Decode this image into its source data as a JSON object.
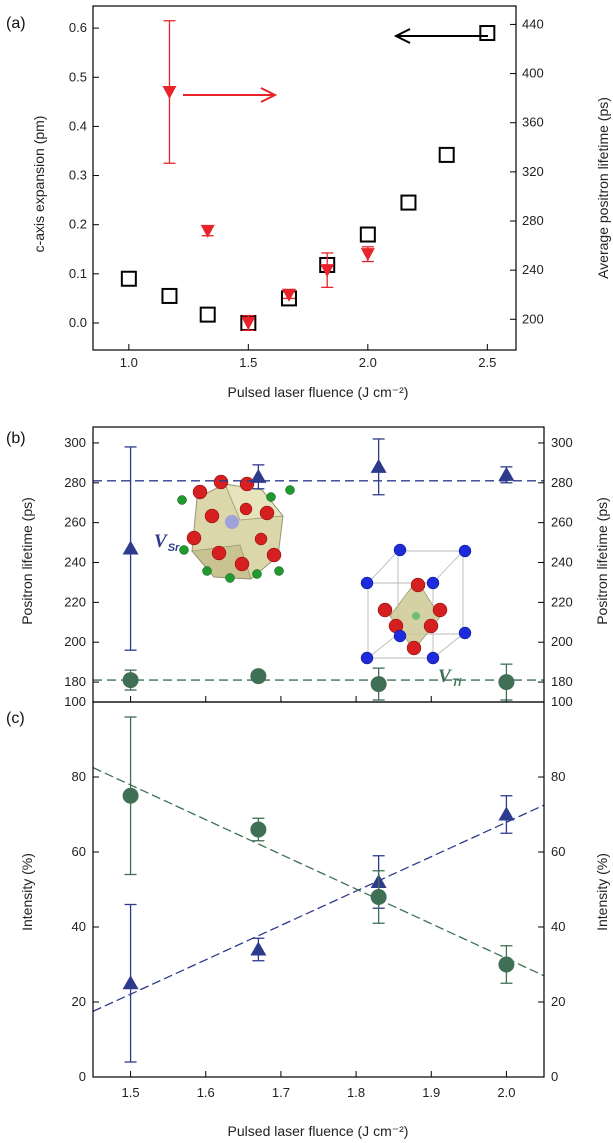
{
  "chart_data": [
    {
      "type": "scatter",
      "panel_label": "(a)",
      "xlabel": "Pulsed laser fluence (J cm⁻²)",
      "ylabel_left": "c-axis expansion (pm)",
      "ylabel_right": "Average positron lifetime (ps)",
      "xlim": [
        0.85,
        2.62
      ],
      "ylim_left": [
        -0.055,
        0.645
      ],
      "ylim_right": [
        175,
        455
      ],
      "xticks": [
        "1.0",
        "1.5",
        "2.0",
        "2.5"
      ],
      "yticks_left": [
        "0.0",
        "0.1",
        "0.2",
        "0.3",
        "0.4",
        "0.5",
        "0.6"
      ],
      "yticks_right": [
        "200",
        "240",
        "280",
        "320",
        "360",
        "400",
        "440"
      ],
      "series": [
        {
          "axis": "left",
          "color": "#000000",
          "marker": "open-square",
          "x": [
            1.0,
            1.17,
            1.33,
            1.5,
            1.67,
            1.83,
            2.0,
            2.17,
            2.33,
            2.5
          ],
          "y": [
            0.09,
            0.055,
            0.017,
            0.0,
            0.05,
            0.118,
            0.18,
            0.245,
            0.342,
            0.59
          ]
        },
        {
          "axis": "right",
          "color": "#e8242a",
          "marker": "filled-triangle-down",
          "x": [
            1.17,
            1.33,
            1.5,
            1.67,
            1.83,
            2.0
          ],
          "y": [
            385,
            272,
            197,
            220,
            240,
            253
          ],
          "err": [
            58,
            4,
            6,
            3,
            14,
            6
          ]
        }
      ]
    },
    {
      "type": "scatter",
      "panel_label": "(b)",
      "ylabel_left": "Positron lifetime (ps)",
      "ylabel_right": "Positron lifetime (ps)",
      "xlim": [
        1.45,
        2.05
      ],
      "ylim": [
        170,
        308
      ],
      "yticks": [
        "180",
        "200",
        "220",
        "240",
        "260",
        "280",
        "300"
      ],
      "labels": {
        "vsr": "V",
        "vsr_sub": "Sr",
        "vti": "V",
        "vti_sub": "Ti"
      },
      "reference_lines": [
        {
          "y": 281,
          "color": "#2e3b8c"
        },
        {
          "y": 181,
          "color": "#3f7055"
        }
      ],
      "series": [
        {
          "color": "#2e3b8c",
          "marker": "filled-triangle-up",
          "x": [
            1.5,
            1.67,
            1.83,
            2.0
          ],
          "y": [
            247,
            283,
            288,
            284
          ],
          "err": [
            51,
            6,
            14,
            4
          ]
        },
        {
          "color": "#3f7055",
          "marker": "filled-circle",
          "x": [
            1.5,
            1.67,
            1.83,
            2.0
          ],
          "y": [
            181,
            183,
            179,
            180
          ],
          "err": [
            5,
            0,
            8,
            9
          ]
        }
      ]
    },
    {
      "type": "scatter",
      "panel_label": "(c)",
      "xlabel": "Pulsed laser fluence (J cm⁻²)",
      "ylabel_left": "Intensity (%)",
      "ylabel_right": "Intensity (%)",
      "xlim": [
        1.45,
        2.05
      ],
      "ylim": [
        0,
        100
      ],
      "xticks": [
        "1.5",
        "1.6",
        "1.7",
        "1.8",
        "1.9",
        "2.0"
      ],
      "yticks": [
        "0",
        "20",
        "40",
        "60",
        "80",
        "100"
      ],
      "trend_lines": [
        {
          "color": "#2e3b8c",
          "x": [
            1.45,
            2.05
          ],
          "y": [
            17.5,
            72.5
          ]
        },
        {
          "color": "#3f7055",
          "x": [
            1.45,
            2.05
          ],
          "y": [
            82.5,
            27
          ]
        }
      ],
      "series": [
        {
          "color": "#2e3b8c",
          "marker": "filled-triangle-up",
          "x": [
            1.5,
            1.67,
            1.83,
            2.0
          ],
          "y": [
            25,
            34,
            52,
            70
          ],
          "err": [
            21,
            3,
            7,
            5
          ]
        },
        {
          "color": "#3f7055",
          "marker": "filled-circle",
          "x": [
            1.5,
            1.67,
            1.83,
            2.0
          ],
          "y": [
            75,
            66,
            48,
            30
          ],
          "err": [
            21,
            3,
            7,
            5
          ]
        }
      ]
    }
  ]
}
